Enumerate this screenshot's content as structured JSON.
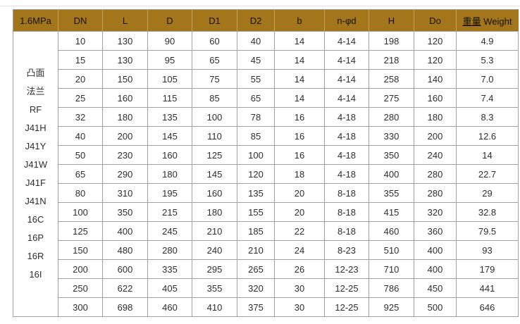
{
  "colors": {
    "header_bg": "#a3761b",
    "header_text": "#141005",
    "header_divider": "#c7a155",
    "grid_border": "#a0a0a0",
    "body_text": "#2e2e2e",
    "top_rule": "#e2e2e2"
  },
  "table": {
    "pressure_label": "1.6MPa",
    "headers": [
      "DN",
      "L",
      "D",
      "D1",
      "D2",
      "b",
      "n-φd",
      "H",
      "Do"
    ],
    "weight_header": {
      "cn": "重量",
      "en": "Weight"
    },
    "side_label_lines": [
      "凸面",
      "法兰",
      "RF",
      "J41H",
      "J41Y",
      "J41W",
      "J41F",
      "J41N",
      "16C",
      "16P",
      "16R",
      "16I"
    ],
    "rows": [
      [
        "10",
        "130",
        "90",
        "60",
        "40",
        "14",
        "4-14",
        "198",
        "120",
        "4.9"
      ],
      [
        "15",
        "130",
        "95",
        "65",
        "45",
        "14",
        "4-14",
        "218",
        "120",
        "5.3"
      ],
      [
        "20",
        "150",
        "105",
        "75",
        "55",
        "14",
        "4-14",
        "258",
        "140",
        "7.0"
      ],
      [
        "25",
        "160",
        "115",
        "85",
        "65",
        "14",
        "4-14",
        "275",
        "160",
        "7.4"
      ],
      [
        "32",
        "180",
        "135",
        "100",
        "78",
        "16",
        "4-18",
        "280",
        "180",
        "8.3"
      ],
      [
        "40",
        "200",
        "145",
        "110",
        "85",
        "16",
        "4-18",
        "330",
        "200",
        "12.6"
      ],
      [
        "50",
        "230",
        "160",
        "125",
        "100",
        "16",
        "4-18",
        "350",
        "240",
        "14"
      ],
      [
        "65",
        "290",
        "180",
        "145",
        "120",
        "18",
        "4-18",
        "400",
        "280",
        "22.7"
      ],
      [
        "80",
        "310",
        "195",
        "160",
        "135",
        "20",
        "8-18",
        "355",
        "280",
        "29"
      ],
      [
        "100",
        "350",
        "215",
        "180",
        "155",
        "20",
        "8-18",
        "415",
        "320",
        "32.8"
      ],
      [
        "125",
        "400",
        "245",
        "210",
        "185",
        "22",
        "8-18",
        "460",
        "360",
        "79.5"
      ],
      [
        "150",
        "480",
        "280",
        "240",
        "210",
        "24",
        "8-23",
        "510",
        "400",
        "93"
      ],
      [
        "200",
        "600",
        "335",
        "295",
        "265",
        "26",
        "12-23",
        "710",
        "400",
        "179"
      ],
      [
        "250",
        "622",
        "405",
        "355",
        "320",
        "30",
        "12-25",
        "786",
        "450",
        "441"
      ],
      [
        "300",
        "698",
        "460",
        "410",
        "375",
        "30",
        "12-25",
        "925",
        "500",
        "646"
      ]
    ]
  }
}
